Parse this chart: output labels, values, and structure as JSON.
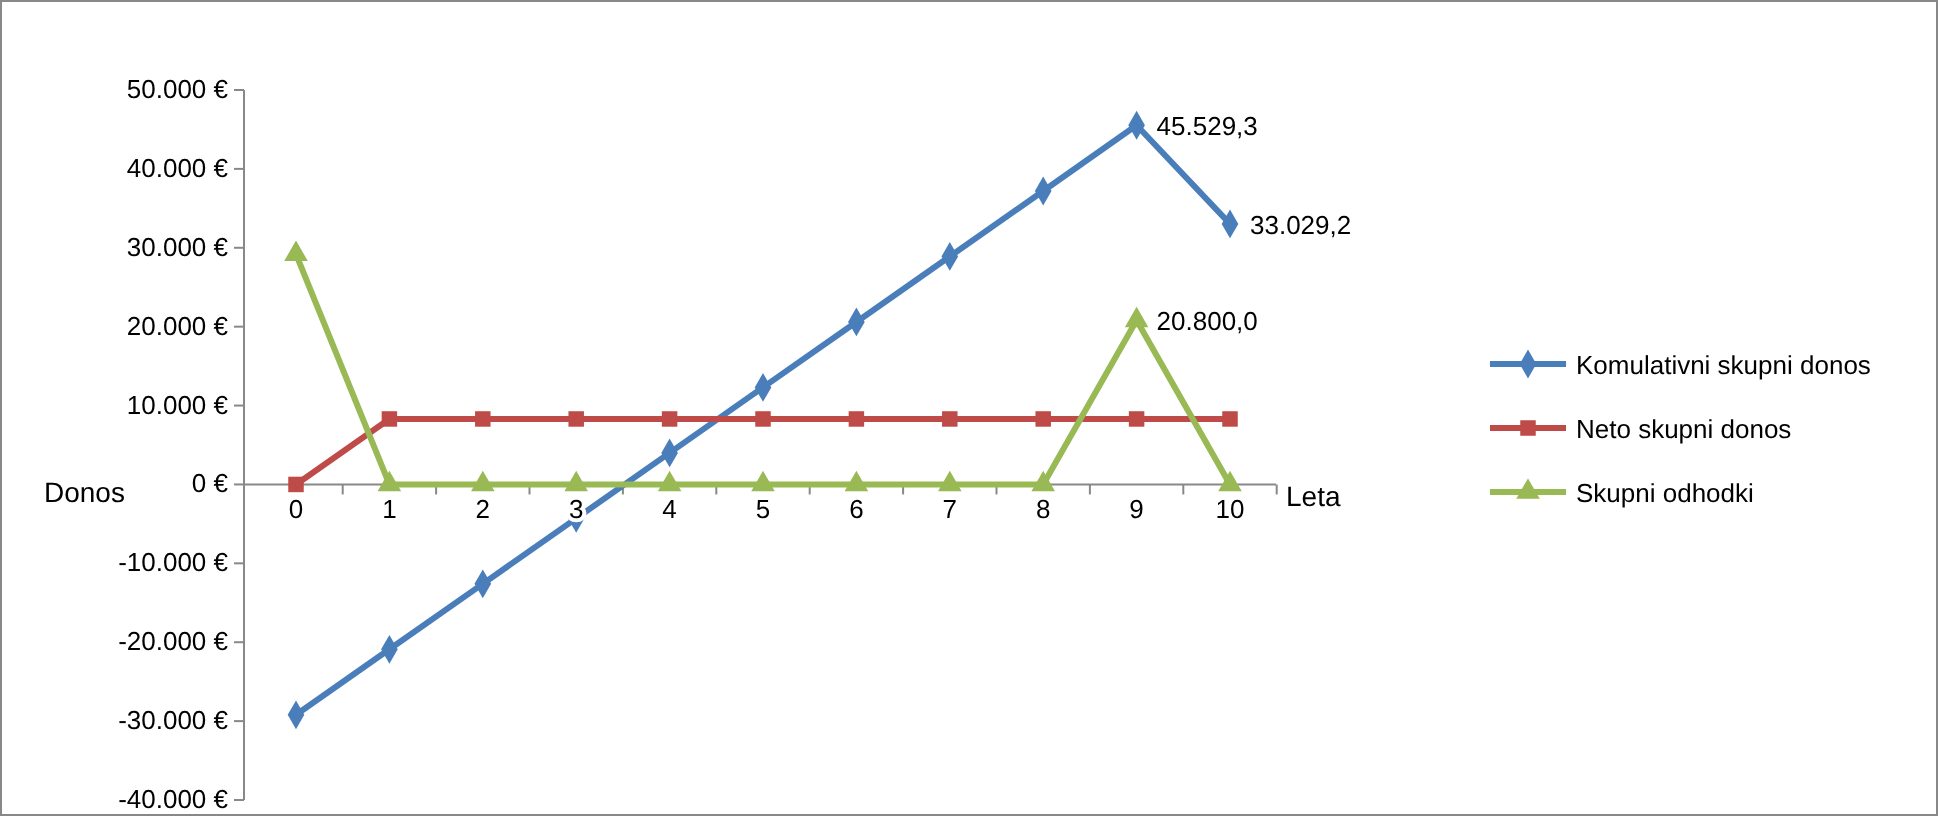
{
  "chart_data": {
    "type": "line",
    "xlabel": "Leta",
    "ylabel": "Donos",
    "categories": [
      "0",
      "1",
      "2",
      "3",
      "4",
      "5",
      "6",
      "7",
      "8",
      "9",
      "10"
    ],
    "series": [
      {
        "name": "Komulativni skupni donos",
        "color": "#4a7ebb",
        "marker": "diamond",
        "values": [
          -29200,
          -20900,
          -12600,
          -4300,
          4000,
          12300,
          20600,
          28900,
          37200,
          45529.3,
          33029.2
        ],
        "value_labels": [
          null,
          null,
          null,
          null,
          null,
          null,
          null,
          null,
          null,
          "45.529,3",
          "33.029,2"
        ]
      },
      {
        "name": "Neto skupni donos",
        "color": "#be4b48",
        "marker": "square",
        "values": [
          0,
          8300,
          8300,
          8300,
          8300,
          8300,
          8300,
          8300,
          8300,
          8300,
          8300
        ]
      },
      {
        "name": "Skupni odhodki",
        "color": "#98b954",
        "marker": "triangle",
        "values": [
          29200,
          0,
          0,
          0,
          0,
          0,
          0,
          0,
          0,
          20800,
          0
        ],
        "value_labels": [
          null,
          null,
          null,
          null,
          null,
          null,
          null,
          null,
          null,
          "20.800,0",
          null
        ]
      }
    ],
    "ylim": [
      -40000,
      50000
    ],
    "yticks": [
      {
        "value": -40000,
        "label": "-40.000 €"
      },
      {
        "value": -30000,
        "label": "-30.000 €"
      },
      {
        "value": -20000,
        "label": "-20.000 €"
      },
      {
        "value": -10000,
        "label": "-10.000 €"
      },
      {
        "value": 0,
        "label": "0 €"
      },
      {
        "value": 10000,
        "label": "10.000 €"
      },
      {
        "value": 20000,
        "label": "20.000 €"
      },
      {
        "value": 30000,
        "label": "30.000 €"
      },
      {
        "value": 40000,
        "label": "40.000 €"
      },
      {
        "value": 50000,
        "label": "50.000 €"
      }
    ],
    "grid": false,
    "legend": "right",
    "line_style": "solid"
  }
}
